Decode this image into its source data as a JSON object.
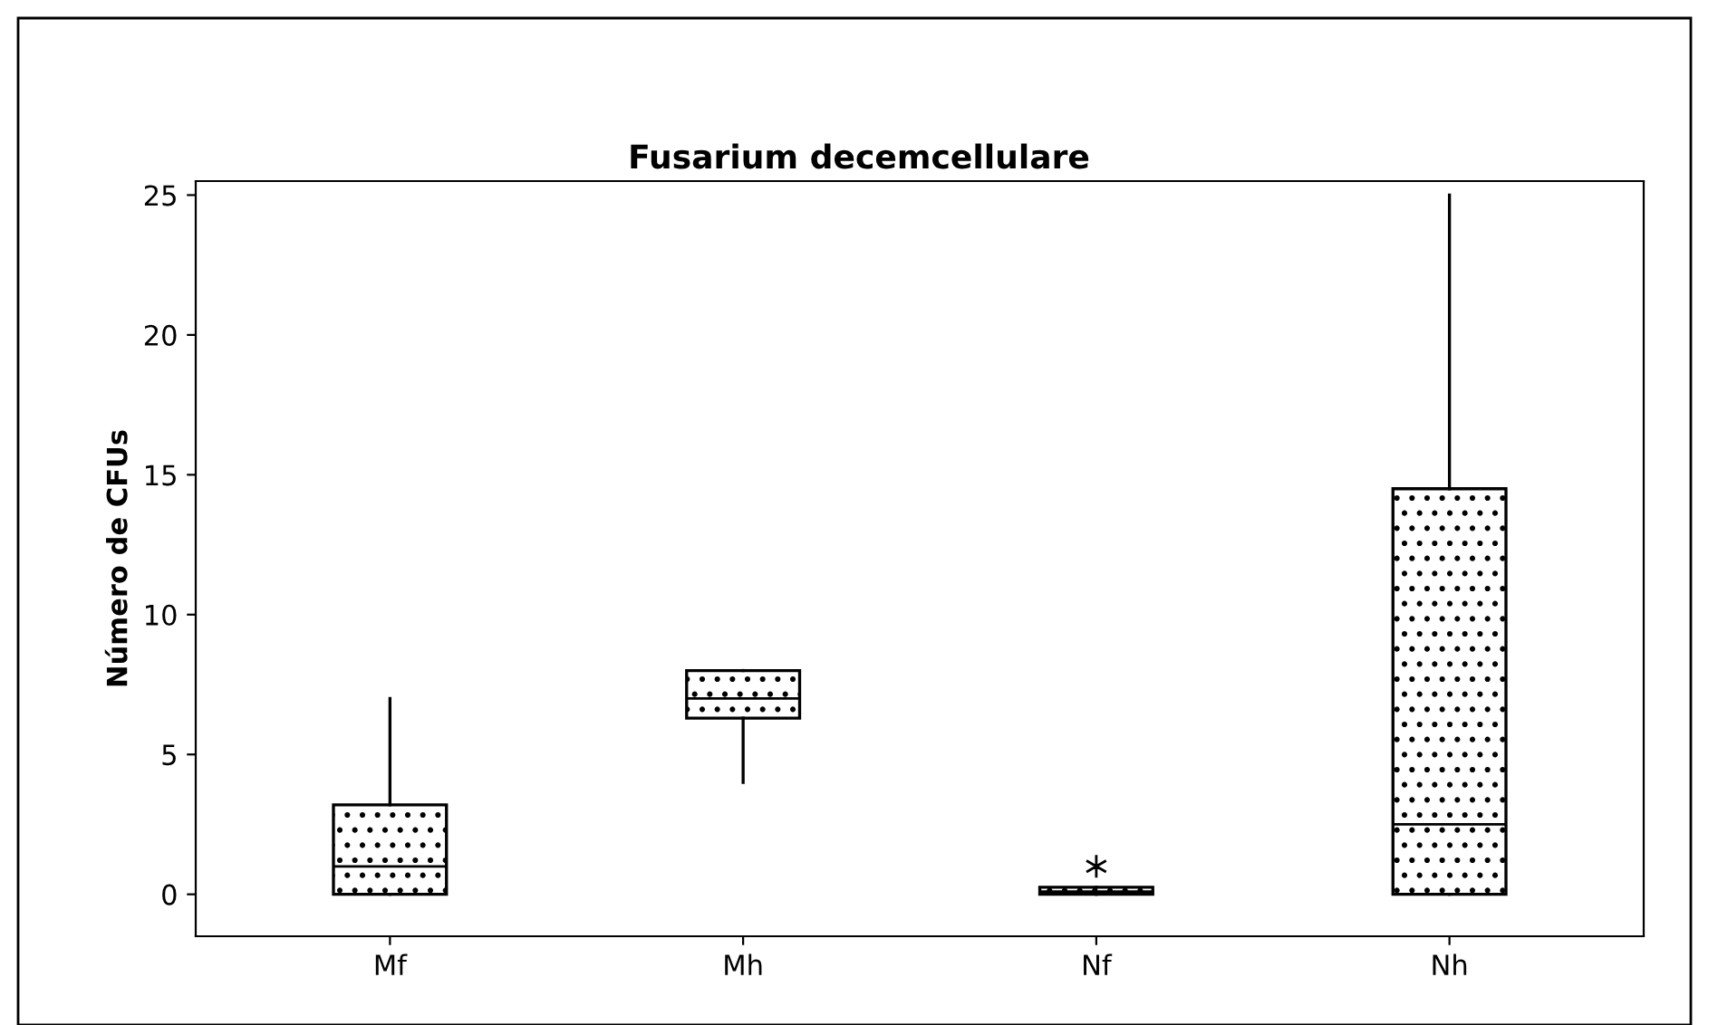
{
  "chart_data": {
    "type": "box",
    "title": "Fusarium decemcellulare",
    "ylabel": "Número de CFUs",
    "categories": [
      "Mf",
      "Mh",
      "Nf",
      "Nh"
    ],
    "boxes": [
      {
        "low": 0,
        "q1": 0,
        "median": 1,
        "q3": 3.2,
        "high": 7
      },
      {
        "low": 4,
        "q1": 6.3,
        "median": 7,
        "q3": 8,
        "high": 8
      },
      {
        "low": 0,
        "q1": 0,
        "median": 0.1,
        "q3": 0.25,
        "high": 0.25,
        "outliers": [
          1
        ]
      },
      {
        "low": 0,
        "q1": 0,
        "median": 2.5,
        "q3": 14.5,
        "high": 25
      }
    ],
    "ylim": [
      -1.5,
      25.5
    ],
    "yticks": [
      0,
      5,
      10,
      15,
      20,
      25
    ],
    "grid": false
  }
}
